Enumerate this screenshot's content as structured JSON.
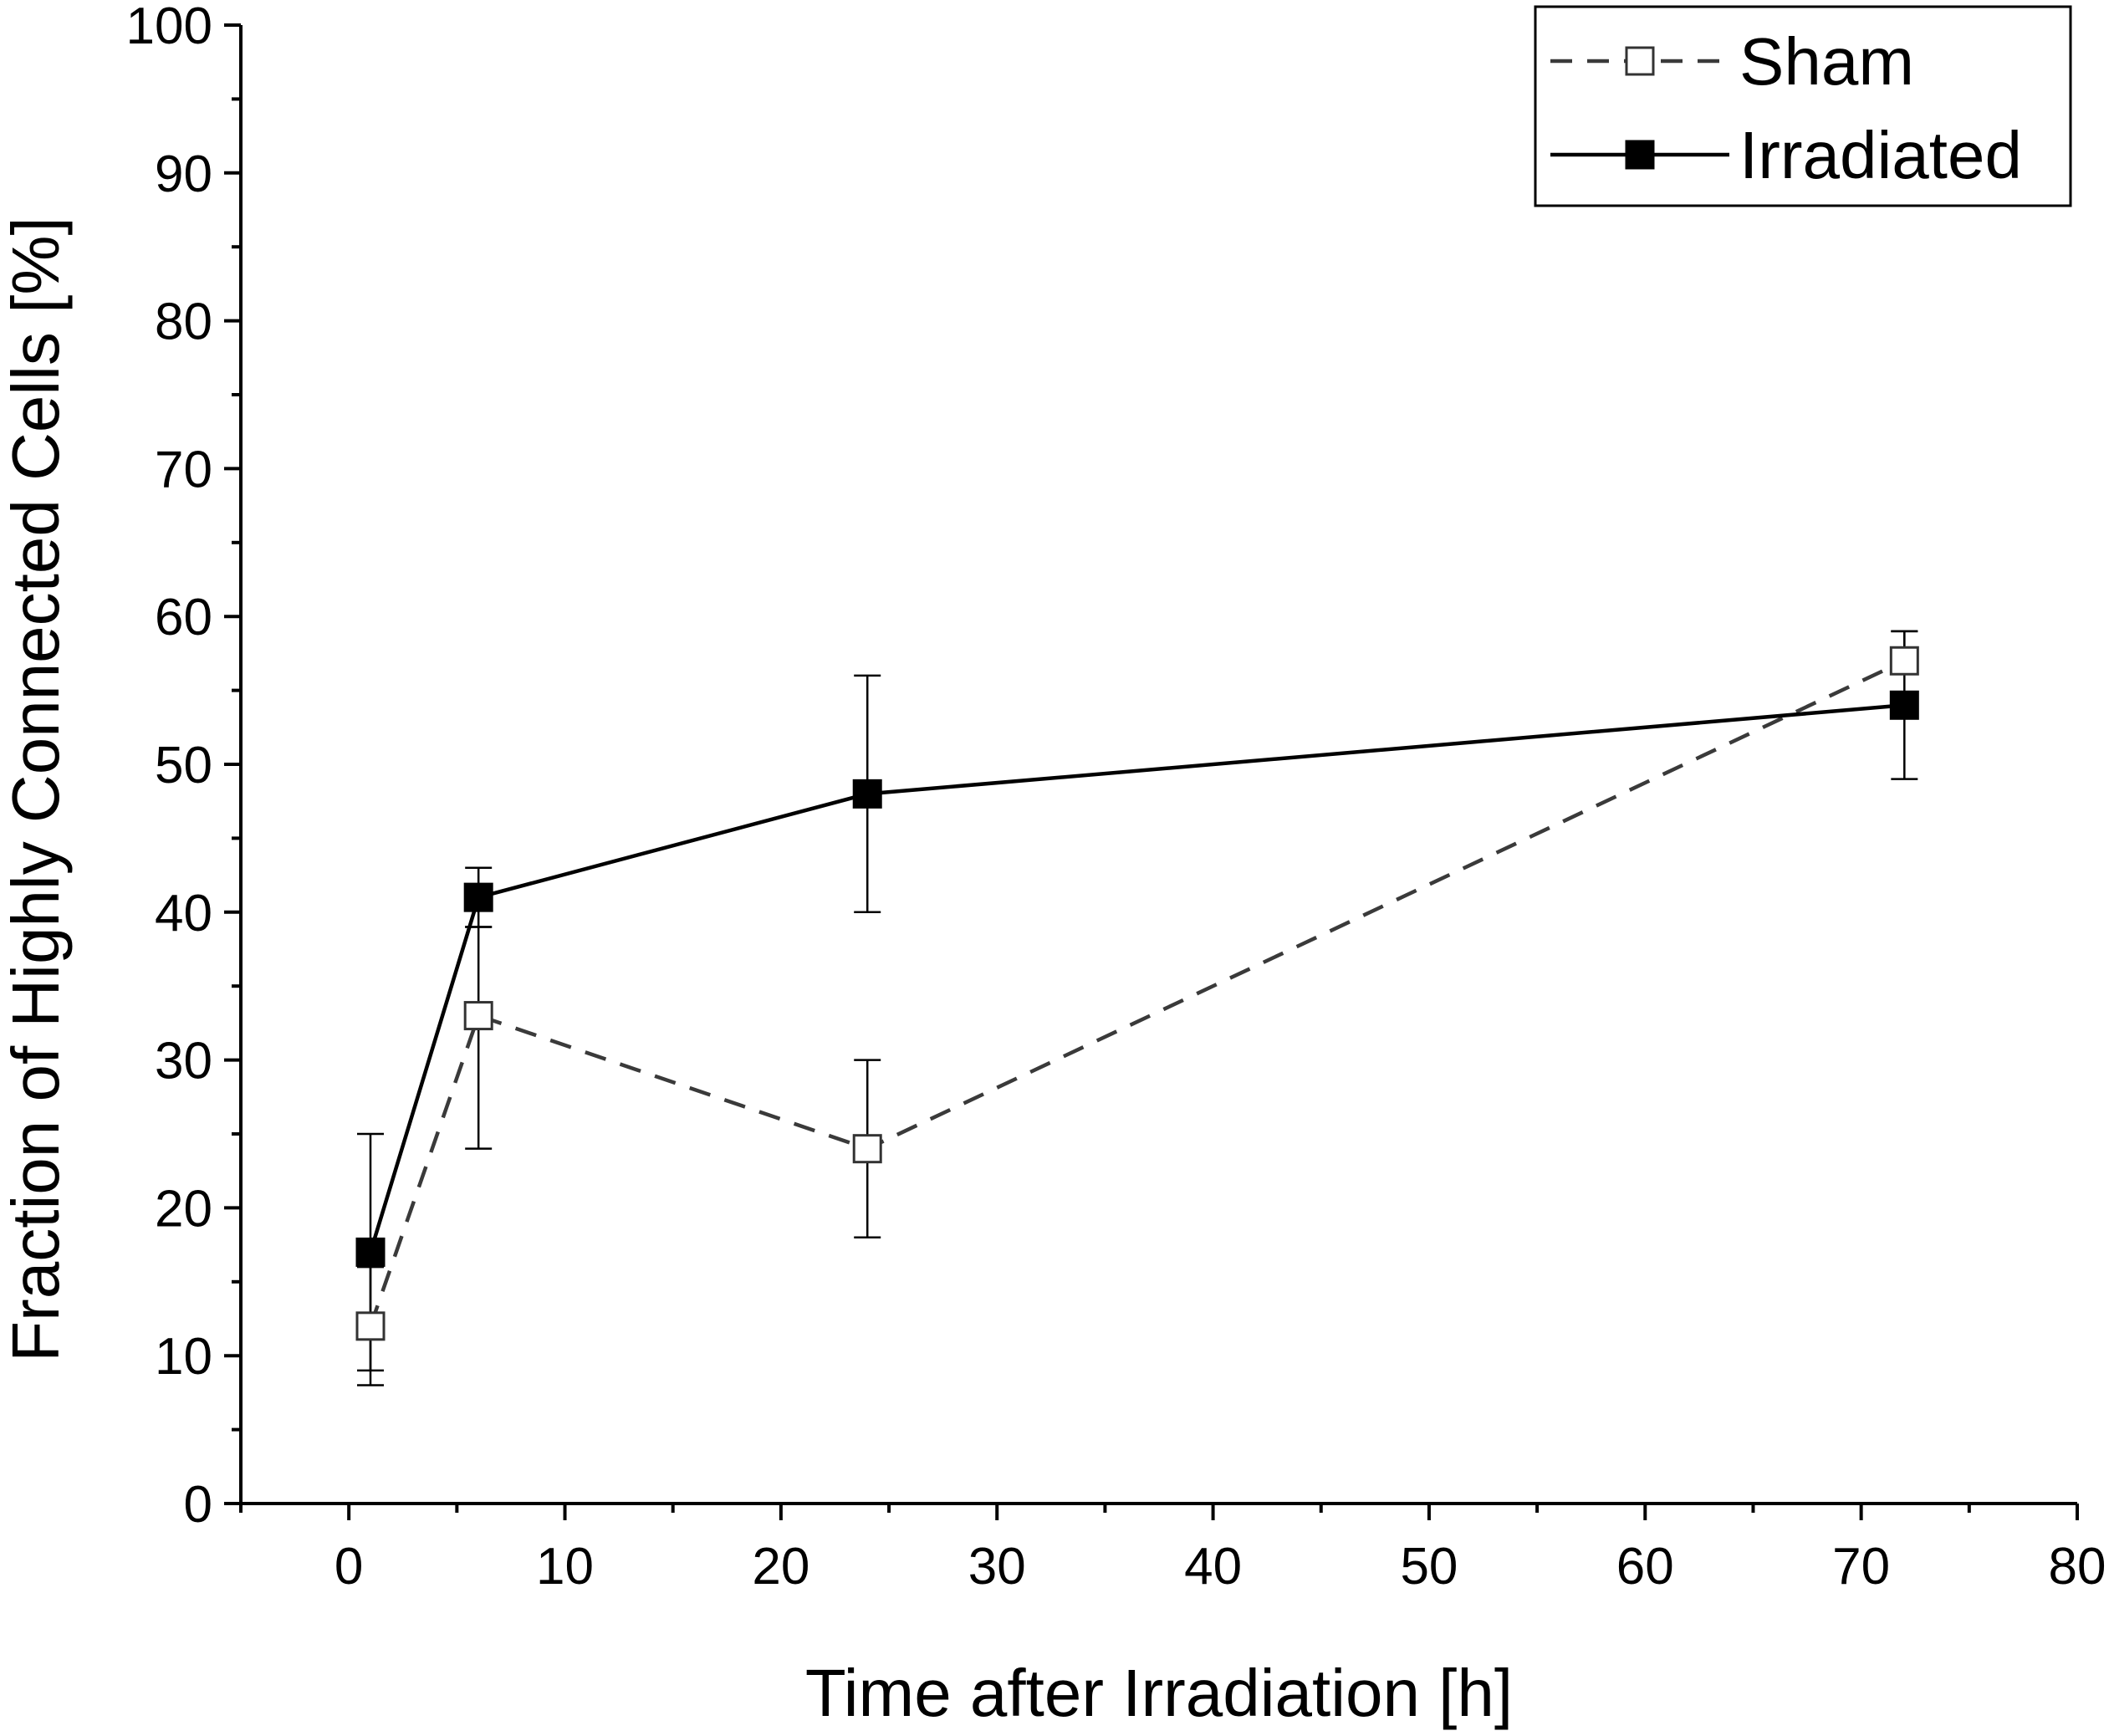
{
  "chart_data": {
    "type": "line",
    "title": "",
    "xlabel": "Time after Irradiation [h]",
    "ylabel": "Fraction of Highly Connected Cells [%]",
    "xlim": [
      -5,
      80
    ],
    "ylim": [
      0,
      100
    ],
    "xticks": [
      0,
      10,
      20,
      30,
      40,
      50,
      60,
      70,
      80
    ],
    "yticks": [
      0,
      10,
      20,
      30,
      40,
      50,
      60,
      70,
      80,
      90,
      100
    ],
    "xtick_labels": [
      "0",
      "10",
      "20",
      "30",
      "40",
      "50",
      "60",
      "70",
      "80"
    ],
    "ytick_labels": [
      "0",
      "10",
      "20",
      "30",
      "40",
      "50",
      "60",
      "70",
      "80",
      "90",
      "100"
    ],
    "legend_position": "top-right",
    "series": [
      {
        "name": "Sham",
        "style": "dashed",
        "marker": "open-square",
        "color": "#3a3a3a",
        "x": [
          1,
          6,
          24,
          72
        ],
        "y": [
          12,
          33,
          24,
          57
        ],
        "err_low": [
          8,
          24,
          18,
          57
        ],
        "err_high": [
          16,
          39,
          30,
          59
        ]
      },
      {
        "name": "Irradiated",
        "style": "solid",
        "marker": "filled-square",
        "color": "#000000",
        "x": [
          1,
          6,
          24,
          72
        ],
        "y": [
          17,
          41,
          48,
          54
        ],
        "err_low": [
          9,
          39,
          40,
          49
        ],
        "err_high": [
          25,
          43,
          56,
          59
        ]
      }
    ]
  }
}
